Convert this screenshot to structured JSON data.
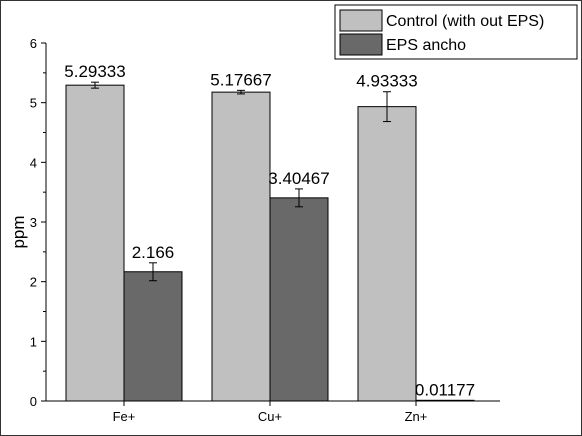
{
  "chart_data": {
    "type": "bar",
    "categories": [
      "Fe+",
      "Cu+",
      "Zn+"
    ],
    "series": [
      {
        "name": "Control (with out EPS)",
        "values": [
          5.29333,
          5.17667,
          4.93333
        ],
        "errors": [
          0.05,
          0.03,
          0.25
        ],
        "labels": [
          "5.29333",
          "5.17667",
          "4.93333"
        ],
        "color": "#c0c0c0"
      },
      {
        "name": "EPS ancho",
        "values": [
          2.166,
          3.40467,
          0.01177
        ],
        "errors": [
          0.15,
          0.15,
          0
        ],
        "labels": [
          "2.166",
          "3.40467",
          "0.01177"
        ],
        "color": "#696969"
      }
    ],
    "xlabel": "",
    "ylabel": "ppm",
    "ylim": [
      0,
      6
    ],
    "yticks": [
      "0",
      "1",
      "2",
      "3",
      "4",
      "5",
      "6"
    ],
    "grid": false,
    "legend_position": "top-right"
  }
}
